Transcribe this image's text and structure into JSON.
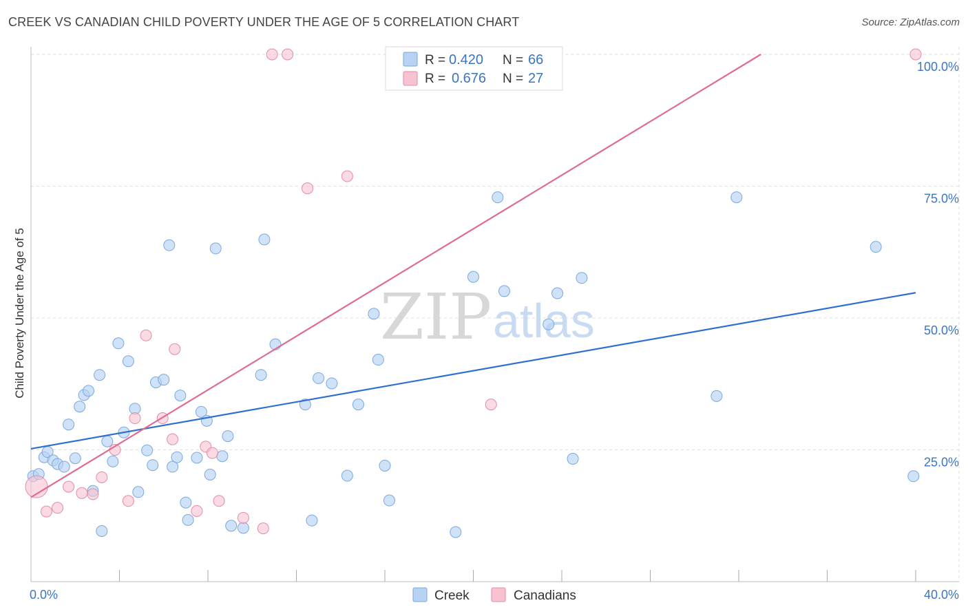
{
  "title": "CREEK VS CANADIAN CHILD POVERTY UNDER THE AGE OF 5 CORRELATION CHART",
  "source": "Source: ZipAtlas.com",
  "watermark": {
    "zip": "ZIP",
    "atlas": "atlas"
  },
  "colors": {
    "creek_fill": "#b7d2f2",
    "creek_stroke": "#7aa7dd",
    "creek_line": "#2f6fd0",
    "canadian_fill": "#f7c3d1",
    "canadian_stroke": "#e48aa6",
    "canadian_line": "#e06b92",
    "grid": "#dedede",
    "axis_text": "#3a75c4"
  },
  "legend": {
    "rows": [
      {
        "r_label": "R =",
        "r_value": "0.420",
        "n_label": "N =",
        "n_value": "66"
      },
      {
        "r_label": "R =",
        "r_value": "0.676",
        "n_label": "N =",
        "n_value": "27"
      }
    ]
  },
  "chart_data": {
    "type": "scatter",
    "title": "CREEK VS CANADIAN CHILD POVERTY UNDER THE AGE OF 5 CORRELATION CHART",
    "xlabel": "",
    "ylabel": "Child Poverty Under the Age of 5",
    "xlim": [
      0,
      40
    ],
    "ylim": [
      0,
      100
    ],
    "x_tick_labels": [
      "0.0%",
      "40.0%"
    ],
    "y_ticks": [
      25,
      50,
      75,
      100
    ],
    "y_tick_labels": [
      "25.0%",
      "50.0%",
      "75.0%",
      "100.0%"
    ],
    "series": [
      {
        "name": "Creek",
        "trend": {
          "x": [
            0,
            40
          ],
          "y": [
            25.2,
            54.8
          ]
        },
        "points": [
          [
            0.1,
            20.0
          ],
          [
            0.35,
            20.4
          ],
          [
            0.6,
            23.6
          ],
          [
            0.75,
            24.6
          ],
          [
            1.0,
            23.0
          ],
          [
            1.2,
            22.3
          ],
          [
            1.5,
            21.8
          ],
          [
            1.7,
            29.8
          ],
          [
            2.0,
            23.4
          ],
          [
            2.2,
            33.2
          ],
          [
            2.4,
            35.4
          ],
          [
            2.6,
            36.2
          ],
          [
            2.8,
            17.2
          ],
          [
            3.1,
            39.2
          ],
          [
            3.2,
            9.6
          ],
          [
            3.45,
            26.6
          ],
          [
            3.7,
            22.8
          ],
          [
            3.95,
            45.2
          ],
          [
            4.2,
            28.3
          ],
          [
            4.4,
            41.8
          ],
          [
            4.7,
            32.8
          ],
          [
            4.85,
            17.0
          ],
          [
            5.25,
            24.9
          ],
          [
            5.5,
            22.1
          ],
          [
            5.65,
            37.8
          ],
          [
            6.0,
            38.3
          ],
          [
            6.25,
            63.8
          ],
          [
            6.4,
            21.8
          ],
          [
            6.6,
            23.6
          ],
          [
            6.75,
            35.3
          ],
          [
            7.0,
            15.0
          ],
          [
            7.1,
            11.7
          ],
          [
            7.5,
            23.5
          ],
          [
            7.7,
            32.2
          ],
          [
            7.95,
            30.5
          ],
          [
            8.1,
            20.3
          ],
          [
            8.35,
            63.2
          ],
          [
            8.65,
            23.8
          ],
          [
            8.9,
            27.6
          ],
          [
            9.05,
            10.6
          ],
          [
            9.6,
            10.2
          ],
          [
            10.4,
            39.2
          ],
          [
            10.55,
            64.9
          ],
          [
            11.05,
            45.0
          ],
          [
            12.4,
            33.6
          ],
          [
            12.7,
            11.6
          ],
          [
            13.0,
            38.6
          ],
          [
            13.6,
            37.6
          ],
          [
            14.3,
            20.1
          ],
          [
            14.8,
            33.6
          ],
          [
            15.5,
            50.8
          ],
          [
            15.7,
            42.1
          ],
          [
            16.0,
            22.0
          ],
          [
            16.2,
            15.4
          ],
          [
            19.2,
            9.4
          ],
          [
            20.0,
            57.8
          ],
          [
            21.1,
            72.9
          ],
          [
            21.4,
            55.1
          ],
          [
            23.4,
            48.8
          ],
          [
            23.8,
            54.7
          ],
          [
            24.5,
            23.3
          ],
          [
            24.9,
            57.6
          ],
          [
            31.0,
            35.2
          ],
          [
            31.9,
            72.9
          ],
          [
            38.2,
            63.5
          ],
          [
            39.9,
            20.0
          ]
        ]
      },
      {
        "name": "Canadians",
        "trend": {
          "x": [
            0,
            33
          ],
          "y": [
            16.0,
            100.0
          ]
        },
        "points": [
          [
            0.25,
            18.0
          ],
          [
            0.7,
            13.3
          ],
          [
            1.2,
            14.0
          ],
          [
            1.7,
            18.0
          ],
          [
            2.3,
            16.8
          ],
          [
            2.8,
            16.6
          ],
          [
            3.2,
            19.8
          ],
          [
            3.8,
            25.0
          ],
          [
            4.4,
            15.3
          ],
          [
            4.7,
            31.0
          ],
          [
            5.2,
            46.7
          ],
          [
            5.95,
            31.0
          ],
          [
            6.4,
            27.0
          ],
          [
            6.5,
            44.1
          ],
          [
            7.5,
            13.4
          ],
          [
            7.9,
            25.6
          ],
          [
            8.2,
            24.4
          ],
          [
            8.5,
            15.3
          ],
          [
            9.6,
            12.1
          ],
          [
            10.5,
            10.1
          ],
          [
            10.9,
            100.0
          ],
          [
            11.6,
            100.0
          ],
          [
            12.5,
            74.6
          ],
          [
            14.3,
            76.9
          ],
          [
            20.8,
            33.6
          ],
          [
            21.1,
            100.0
          ],
          [
            40.0,
            100.0
          ]
        ]
      }
    ]
  }
}
